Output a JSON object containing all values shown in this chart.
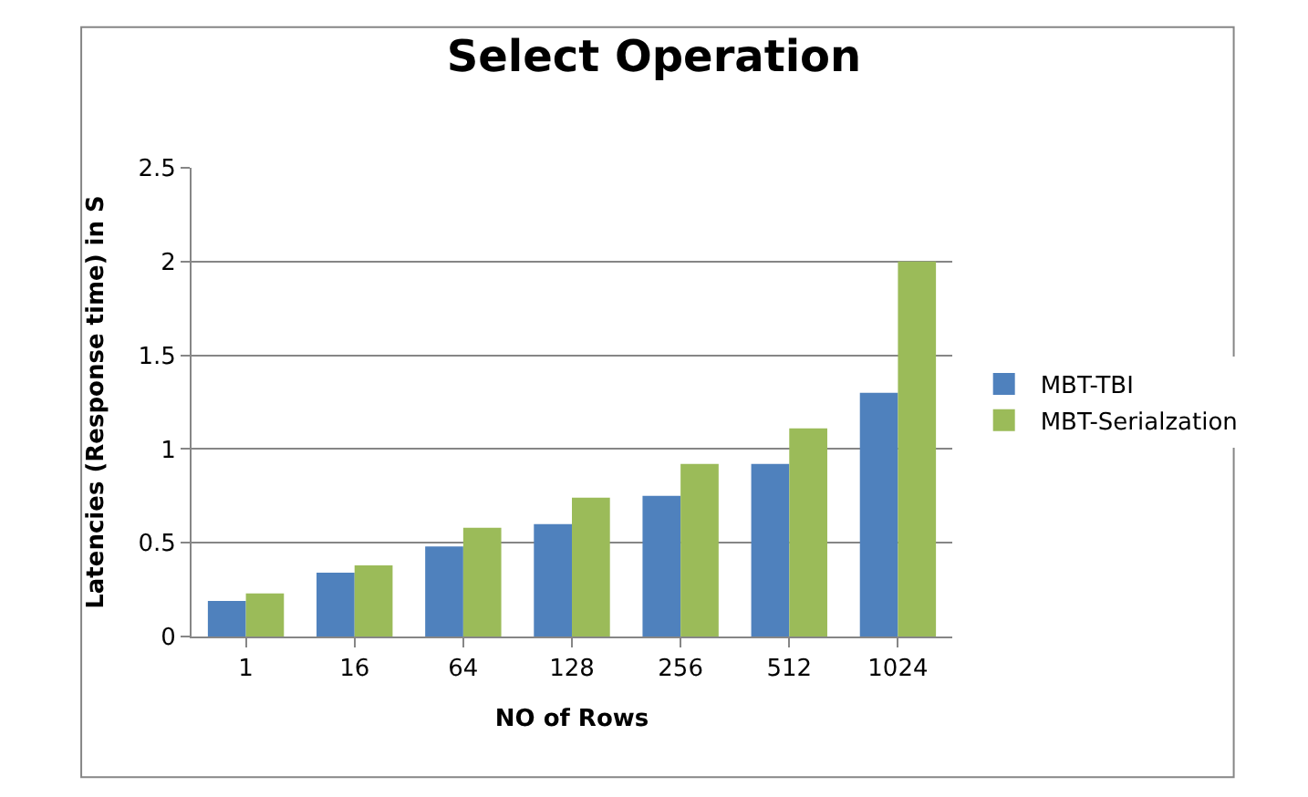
{
  "chart_data": {
    "type": "bar",
    "title": "Select Operation",
    "xlabel": "NO of Rows",
    "ylabel": "Latencies (Response time) in S",
    "categories": [
      "1",
      "16",
      "64",
      "128",
      "256",
      "512",
      "1024"
    ],
    "series": [
      {
        "name": "MBT-TBI",
        "color": "#4f81bd",
        "values": [
          0.19,
          0.34,
          0.48,
          0.6,
          0.75,
          0.92,
          1.3
        ]
      },
      {
        "name": "MBT-Serialzation",
        "color": "#9bbb59",
        "values": [
          0.23,
          0.38,
          0.58,
          0.74,
          0.92,
          1.11,
          2.0
        ]
      }
    ],
    "ylim": [
      0,
      2.5
    ],
    "yticks": [
      0,
      0.5,
      1,
      1.5,
      2,
      2.5
    ],
    "grid": "y",
    "legend": "right"
  }
}
